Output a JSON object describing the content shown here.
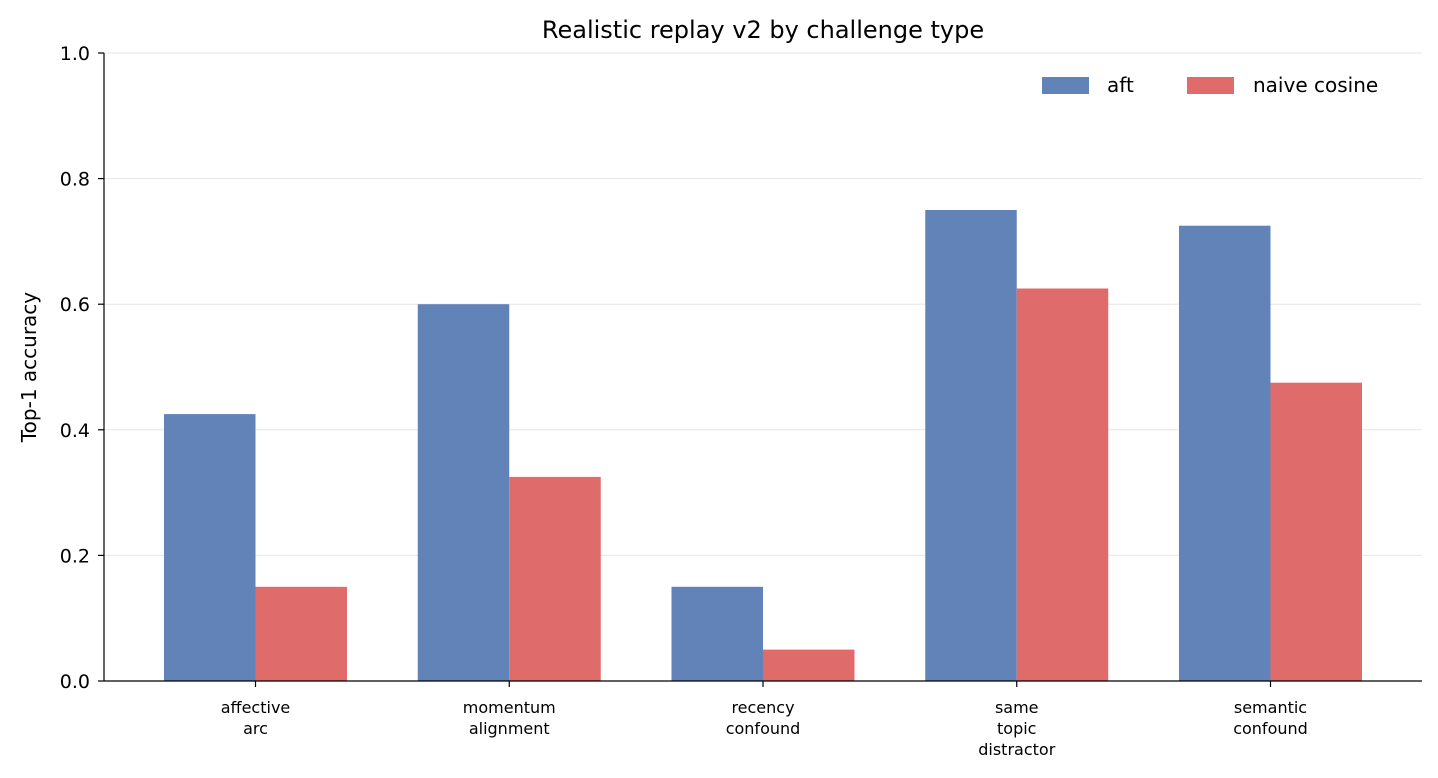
{
  "chart_data": {
    "type": "bar",
    "title": "Realistic replay v2 by challenge type",
    "xlabel": "",
    "ylabel": "Top-1 accuracy",
    "ylim": [
      0,
      1.0
    ],
    "yticks": [
      "0.0",
      "0.2",
      "0.4",
      "0.6",
      "0.8",
      "1.0"
    ],
    "grid": "horizontal",
    "legend_position": "top-right",
    "categories": [
      [
        "affective",
        "arc"
      ],
      [
        "momentum",
        "alignment"
      ],
      [
        "recency",
        "confound"
      ],
      [
        "same",
        "topic",
        "distractor"
      ],
      [
        "semantic",
        "confound"
      ]
    ],
    "series": [
      {
        "name": "aft",
        "color": "#6283b8",
        "values": [
          0.425,
          0.6,
          0.15,
          0.75,
          0.725
        ]
      },
      {
        "name": "naive cosine",
        "color": "#e06b6b",
        "values": [
          0.15,
          0.325,
          0.05,
          0.625,
          0.475
        ]
      }
    ]
  }
}
